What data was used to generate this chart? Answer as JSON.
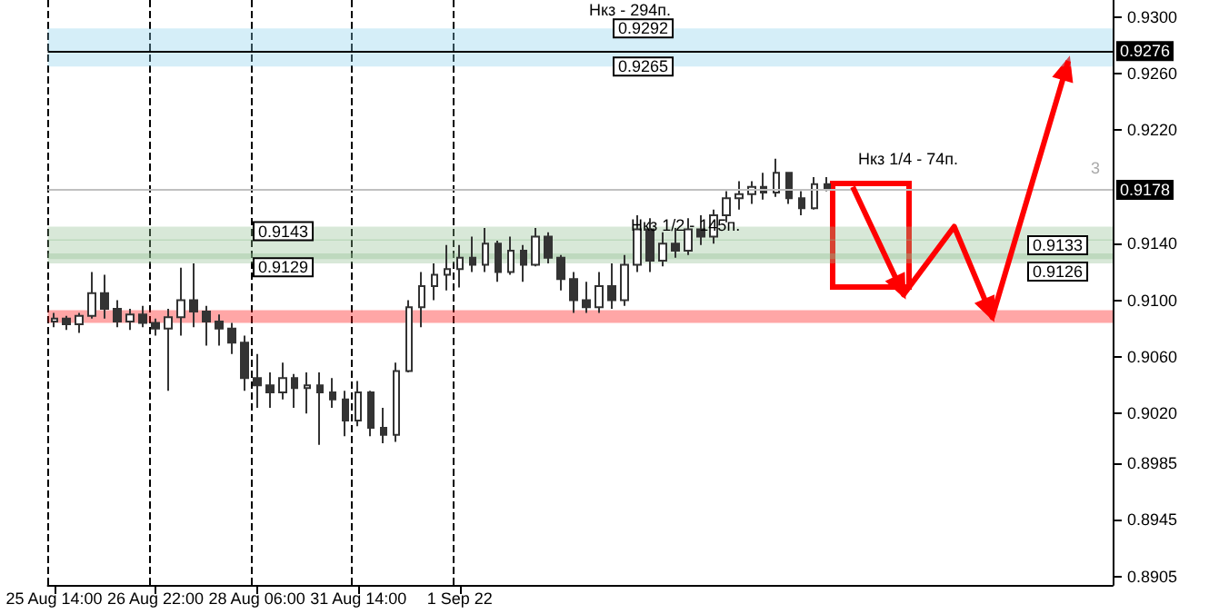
{
  "chart_data": {
    "type": "candlestick",
    "categories": [
      "25 Aug 14:00",
      null,
      null,
      null,
      null,
      null,
      null,
      null,
      "26 Aug 22:00",
      null,
      null,
      null,
      null,
      null,
      null,
      null,
      "28 Aug 06:00",
      null,
      null,
      null,
      null,
      null,
      null,
      null,
      "31 Aug 14:00",
      null,
      null,
      null,
      null,
      null,
      null,
      null,
      "1 Sep 22",
      null,
      null,
      null,
      null,
      null,
      null,
      null,
      null,
      null,
      null,
      null,
      null,
      null,
      null,
      null,
      null,
      null,
      null,
      null,
      null,
      null,
      null,
      null,
      null,
      null,
      null,
      null,
      null,
      null,
      null,
      null,
      null,
      null,
      null,
      null,
      null,
      null,
      null,
      null,
      null,
      null,
      null,
      null,
      null,
      null,
      null,
      null,
      null,
      null,
      null,
      null
    ],
    "series": [
      {
        "color": "#333333",
        "ohlc": [
          [
            0.9085,
            0.9091,
            0.9081,
            0.9087
          ],
          [
            0.9087,
            0.9089,
            0.9079,
            0.9083
          ],
          [
            0.9083,
            0.9091,
            0.9077,
            0.9089
          ],
          [
            0.9089,
            0.912,
            0.9087,
            0.9105
          ],
          [
            0.9105,
            0.9118,
            0.9087,
            0.9094
          ],
          [
            0.9094,
            0.91,
            0.9081,
            0.9085
          ],
          [
            0.9085,
            0.9094,
            0.9079,
            0.909
          ],
          [
            0.909,
            0.9096,
            0.9081,
            0.9084
          ],
          [
            0.9084,
            0.9087,
            0.9075,
            0.908
          ],
          [
            0.908,
            0.9094,
            0.9036,
            0.9088
          ],
          [
            0.9088,
            0.9123,
            0.9075,
            0.91
          ],
          [
            0.91,
            0.9126,
            0.9081,
            0.9092
          ],
          [
            0.9092,
            0.9096,
            0.9068,
            0.9085
          ],
          [
            0.9085,
            0.909,
            0.9068,
            0.908
          ],
          [
            0.908,
            0.9084,
            0.9062,
            0.907
          ],
          [
            0.907,
            0.9075,
            0.9036,
            0.9045
          ],
          [
            0.9045,
            0.9062,
            0.9024,
            0.904
          ],
          [
            0.904,
            0.9049,
            0.9024,
            0.9035
          ],
          [
            0.9035,
            0.9056,
            0.903,
            0.9045
          ],
          [
            0.9045,
            0.9048,
            0.9024,
            0.9038
          ],
          [
            0.9038,
            0.9049,
            0.902,
            0.904
          ],
          [
            0.904,
            0.9049,
            0.8998,
            0.9035
          ],
          [
            0.9035,
            0.9045,
            0.9024,
            0.903
          ],
          [
            0.903,
            0.9036,
            0.9004,
            0.9015
          ],
          [
            0.9015,
            0.9043,
            0.9011,
            0.9035
          ],
          [
            0.9035,
            0.9036,
            0.9004,
            0.901
          ],
          [
            0.901,
            0.9024,
            0.8999,
            0.9005
          ],
          [
            0.9005,
            0.9056,
            0.9,
            0.905
          ],
          [
            0.905,
            0.91,
            0.9049,
            0.9095
          ],
          [
            0.9095,
            0.912,
            0.9081,
            0.911
          ],
          [
            0.911,
            0.9126,
            0.91,
            0.9118
          ],
          [
            0.9118,
            0.9139,
            0.9107,
            0.9122
          ],
          [
            0.9122,
            0.9139,
            0.9109,
            0.913
          ],
          [
            0.913,
            0.9145,
            0.912,
            0.9125
          ],
          [
            0.9125,
            0.9151,
            0.912,
            0.914
          ],
          [
            0.914,
            0.9142,
            0.9113,
            0.912
          ],
          [
            0.912,
            0.9145,
            0.9118,
            0.9135
          ],
          [
            0.9135,
            0.9139,
            0.9113,
            0.9125
          ],
          [
            0.9125,
            0.9151,
            0.9124,
            0.9145
          ],
          [
            0.9145,
            0.9148,
            0.9126,
            0.913
          ],
          [
            0.913,
            0.9132,
            0.9107,
            0.9115
          ],
          [
            0.9115,
            0.912,
            0.9091,
            0.91
          ],
          [
            0.91,
            0.9113,
            0.9091,
            0.9095
          ],
          [
            0.9095,
            0.912,
            0.9091,
            0.911
          ],
          [
            0.911,
            0.9126,
            0.9094,
            0.91
          ],
          [
            0.91,
            0.9132,
            0.9096,
            0.9125
          ],
          [
            0.9125,
            0.916,
            0.912,
            0.915
          ],
          [
            0.915,
            0.9158,
            0.912,
            0.9128
          ],
          [
            0.9128,
            0.9148,
            0.9124,
            0.914
          ],
          [
            0.914,
            0.9151,
            0.913,
            0.9135
          ],
          [
            0.9135,
            0.9158,
            0.9132,
            0.915
          ],
          [
            0.915,
            0.916,
            0.9139,
            0.9145
          ],
          [
            0.9145,
            0.9164,
            0.914,
            0.916
          ],
          [
            0.916,
            0.9177,
            0.9155,
            0.9172
          ],
          [
            0.9172,
            0.9184,
            0.9164,
            0.9175
          ],
          [
            0.9175,
            0.9184,
            0.9168,
            0.918
          ],
          [
            0.918,
            0.919,
            0.9171,
            0.9176
          ],
          [
            0.9176,
            0.92,
            0.9173,
            0.919
          ],
          [
            0.919,
            0.919,
            0.9168,
            0.9172
          ],
          [
            0.9172,
            0.9177,
            0.916,
            0.9165
          ],
          [
            0.9165,
            0.9187,
            0.9164,
            0.9182
          ],
          [
            0.9182,
            0.9187,
            0.9177,
            0.9178
          ],
          null,
          null,
          null,
          null,
          null,
          null,
          null,
          null,
          null,
          null,
          null,
          null,
          null,
          null,
          null,
          null,
          null,
          null,
          null,
          null,
          null,
          null
        ]
      },
      {
        "type": "line",
        "color": "#ff0000",
        "values": [
          null,
          null,
          null,
          null,
          null,
          null,
          null,
          null,
          null,
          null,
          null,
          null,
          null,
          null,
          null,
          null,
          null,
          null,
          null,
          null,
          null,
          null,
          null,
          null,
          null,
          null,
          null,
          null,
          null,
          null,
          null,
          null,
          null,
          null,
          null,
          null,
          null,
          null,
          null,
          null,
          null,
          null,
          null,
          null,
          null,
          null,
          null,
          null,
          null,
          null,
          null,
          null,
          null,
          null,
          null,
          null,
          null,
          null,
          null,
          null,
          null,
          null,
          null,
          0.918,
          null,
          null,
          null,
          0.9104,
          null,
          null,
          null,
          0.9152,
          null,
          null,
          0.9088,
          null,
          null,
          null,
          null,
          null,
          0.9269,
          null,
          null,
          null
        ]
      }
    ],
    "ylim": [
      0.8899,
      0.9312
    ],
    "yticks": [
      {
        "value": 0.8905,
        "label": "0.8905"
      },
      {
        "value": 0.8945,
        "label": "0.8945"
      },
      {
        "value": 0.8985,
        "label": "0.8985"
      },
      {
        "value": 0.902,
        "label": "0.9020"
      },
      {
        "value": 0.906,
        "label": "0.9060"
      },
      {
        "value": 0.91,
        "label": "0.9100"
      },
      {
        "value": 0.914,
        "label": "0.9140"
      },
      {
        "value": 0.922,
        "label": "0.9220"
      },
      {
        "value": 0.926,
        "label": "0.9260"
      },
      {
        "value": 0.93,
        "label": "0.9300"
      }
    ],
    "grid": "x",
    "ref_lines": [
      {
        "axis": "y",
        "value": 0.9276,
        "label": "0.9276",
        "color": "#000000"
      },
      {
        "axis": "y",
        "value": 0.9178,
        "label": "0.9178",
        "color": "#c0c0c0"
      }
    ],
    "bands": [
      {
        "axis": "y",
        "from": 0.9265,
        "to": 0.9292,
        "color": "#87ceeb"
      },
      {
        "axis": "y",
        "from": 0.9126,
        "to": 0.9133,
        "color": "#8fbc8f"
      },
      {
        "axis": "y",
        "from": 0.9129,
        "to": 0.9143,
        "color": "#8fbc8f"
      },
      {
        "axis": "y",
        "from": 0.9142,
        "to": 0.9152,
        "color": "#8fbc8f"
      },
      {
        "axis": "y",
        "from": 0.9084,
        "to": 0.9093,
        "color": "#ff0000"
      }
    ],
    "annotations": [
      "Нкз - 294п.",
      {
        "text": "0.9292",
        "y": 0.9292
      },
      {
        "text": "0.9265",
        "y": 0.9265
      },
      {
        "text": "Нкз 1/2 - 145п.",
        "y": 0.9147
      },
      {
        "text": "0.9143",
        "y": 0.9143
      },
      {
        "text": "0.9129",
        "y": 0.9129
      },
      {
        "text": "0.9133",
        "y": 0.9133
      },
      {
        "text": "0.9126",
        "y": 0.9126
      },
      "Нкз 1/4 - 74п.",
      "3"
    ]
  }
}
